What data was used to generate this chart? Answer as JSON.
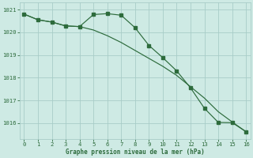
{
  "smooth_x": [
    0,
    1,
    2,
    3,
    4,
    5,
    6,
    7,
    8,
    9,
    10,
    11,
    12,
    13,
    14,
    15,
    16
  ],
  "smooth_y": [
    1020.8,
    1020.55,
    1020.45,
    1020.28,
    1020.25,
    1020.1,
    1019.85,
    1019.55,
    1019.2,
    1018.85,
    1018.5,
    1018.1,
    1017.6,
    1017.1,
    1016.5,
    1016.05,
    1015.62
  ],
  "marker_x": [
    0,
    1,
    2,
    3,
    4,
    5,
    6,
    7,
    8,
    9,
    10,
    11,
    12,
    13,
    14,
    15,
    16
  ],
  "marker_y": [
    1020.8,
    1020.55,
    1020.45,
    1020.28,
    1020.25,
    1020.78,
    1020.82,
    1020.75,
    1020.2,
    1019.42,
    1018.88,
    1018.3,
    1017.55,
    1016.65,
    1016.03,
    1016.02,
    1015.62
  ],
  "bg_color": "#ceeae4",
  "grid_color": "#a8cdc8",
  "line_color": "#2d6b3c",
  "xlabel": "Graphe pression niveau de la mer (hPa)",
  "ylim": [
    1015.3,
    1021.3
  ],
  "xlim": [
    -0.3,
    16.3
  ],
  "yticks": [
    1016,
    1017,
    1018,
    1019,
    1020,
    1021
  ],
  "xticks": [
    0,
    1,
    2,
    3,
    4,
    5,
    6,
    7,
    8,
    9,
    10,
    11,
    12,
    13,
    14,
    15,
    16
  ]
}
